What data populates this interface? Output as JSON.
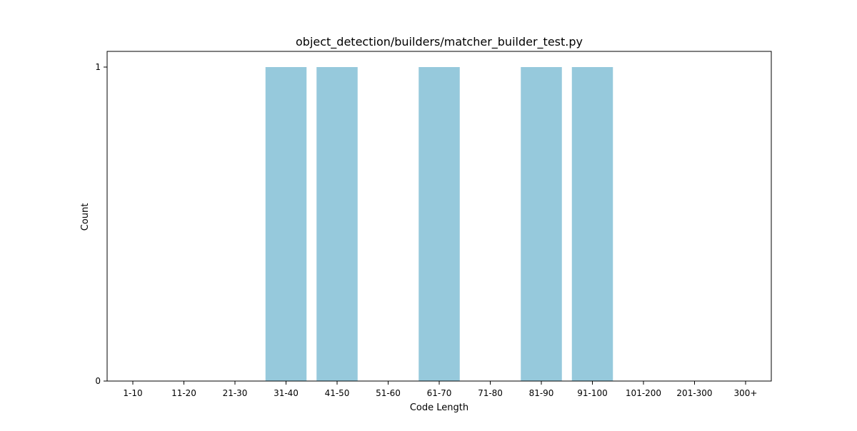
{
  "chart_data": {
    "type": "bar",
    "title": "object_detection/builders/matcher_builder_test.py",
    "xlabel": "Code Length",
    "ylabel": "Count",
    "categories": [
      "1-10",
      "11-20",
      "21-30",
      "31-40",
      "41-50",
      "51-60",
      "61-70",
      "71-80",
      "81-90",
      "91-100",
      "101-200",
      "201-300",
      "300+"
    ],
    "values": [
      0,
      0,
      0,
      1,
      1,
      0,
      1,
      0,
      1,
      1,
      0,
      0,
      0
    ],
    "ylim": [
      0,
      1.05
    ],
    "yticks": [
      0,
      1
    ],
    "grid": false,
    "legend": "none",
    "bar_color": "#96c9dc"
  }
}
